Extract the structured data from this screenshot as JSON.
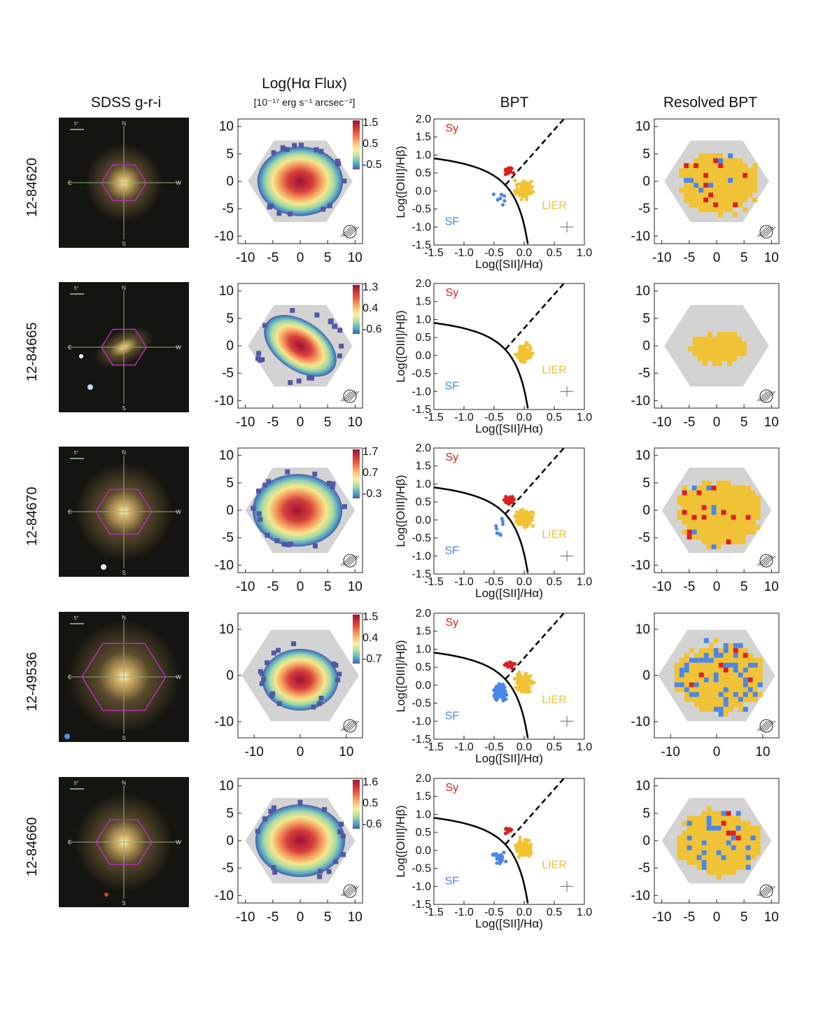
{
  "columns": {
    "sdss": "SDSS g-r-i",
    "ha_title": "Log(Hα Flux)",
    "ha_units": "[10⁻¹⁷ erg s⁻¹ arcsec⁻²]",
    "bpt": "BPT",
    "resolved": "Resolved BPT"
  },
  "sdss_labels": {
    "north": "N",
    "south": "S",
    "east": "E",
    "west": "W",
    "scale": "5\""
  },
  "bpt_common": {
    "xlabel": "Log([SII]/Hα)",
    "ylabel": "Log([OIII]/Hβ)",
    "xticks": [
      "-1.5",
      "-1.0",
      "-0.5",
      "0.0",
      "0.5",
      "1.0"
    ],
    "yticks": [
      "2.0",
      "1.5",
      "1.0",
      "0.5",
      "0.0",
      "-0.5",
      "-1.0",
      "-1.5"
    ],
    "xlim": [
      -1.5,
      1.0
    ],
    "ylim": [
      -1.5,
      2.0
    ],
    "region_sy": "Sy",
    "region_sf": "SF",
    "region_lier": "LIER",
    "colors": {
      "sy": "#dd1f1f",
      "sf": "#4a86e8",
      "lier": "#f1c232",
      "grey": "#d3d3d3"
    }
  },
  "rows": [
    {
      "id": "12-84620",
      "hex": "small",
      "ticks": [
        "-10",
        "-5",
        "0",
        "5",
        "10"
      ],
      "cbar": [
        "1.5",
        "0.5",
        "-0.5"
      ],
      "counts": {
        "sy": 14,
        "sf": 8,
        "lier": 95
      }
    },
    {
      "id": "12-84665",
      "hex": "small",
      "ticks": [
        "-10",
        "-5",
        "0",
        "5",
        "10"
      ],
      "cbar": [
        "1.3",
        "0.4",
        "-0.6"
      ],
      "counts": {
        "sy": 0,
        "sf": 0,
        "lier": 90
      }
    },
    {
      "id": "12-84670",
      "hex": "medium",
      "ticks": [
        "-10",
        "-5",
        "0",
        "5",
        "10"
      ],
      "cbar": [
        "1.7",
        "0.7",
        "-0.3"
      ],
      "counts": {
        "sy": 30,
        "sf": 8,
        "lier": 130
      }
    },
    {
      "id": "12-49536",
      "hex": "large",
      "ticks": [
        "-10",
        "0",
        "10"
      ],
      "cbar": [
        "1.5",
        "0.4",
        "-0.7"
      ],
      "counts": {
        "sy": 28,
        "sf": 90,
        "lier": 110
      }
    },
    {
      "id": "12-84660",
      "hex": "medium",
      "ticks": [
        "-10",
        "-5",
        "0",
        "5",
        "10"
      ],
      "cbar": [
        "1.6",
        "0.5",
        "-0.6"
      ],
      "counts": {
        "sy": 10,
        "sf": 25,
        "lier": 120
      }
    }
  ]
}
